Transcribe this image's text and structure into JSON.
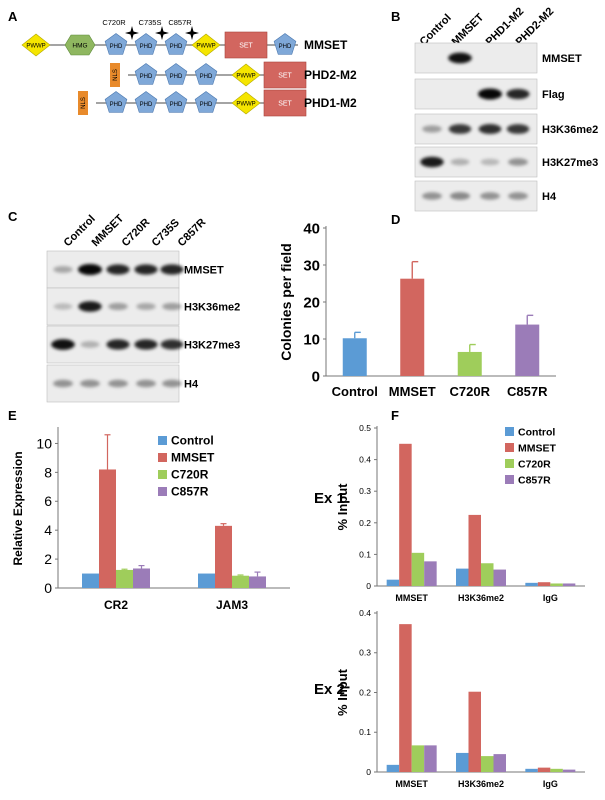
{
  "panel_labels": [
    "A",
    "B",
    "C",
    "D",
    "E",
    "F"
  ],
  "panel_a": {
    "domain_labels": {
      "pwwp": "PWWP",
      "hmg": "HMG",
      "phd": "PHD",
      "set": "SET",
      "nls": "NLS"
    },
    "mutation_labels": [
      "C720R",
      "C735S",
      "C857R"
    ],
    "constructs": [
      {
        "name": "MMSET",
        "domains": [
          "pwwp",
          "hmg",
          "phd",
          "phd",
          "phd",
          "pwwp",
          "set",
          "phd"
        ]
      },
      {
        "name": "PHD2-M2",
        "domains": [
          "nls",
          "phd",
          "phd",
          "phd",
          "pwwp",
          "set",
          "phd"
        ]
      },
      {
        "name": "PHD1-M2",
        "domains": [
          "nls",
          "phd",
          "phd",
          "phd",
          "phd",
          "pwwp",
          "set",
          "phd"
        ]
      }
    ],
    "colors": {
      "pwwp": "#f5e500",
      "hmg": "#8fb760",
      "phd": "#7fa8d8",
      "set": "#d2665f",
      "nls": "#e88a2b"
    }
  },
  "panel_b": {
    "lanes": [
      "Control",
      "MMSET",
      "PHD1-M2",
      "PHD2-M2"
    ],
    "rows": [
      "MMSET",
      "Flag",
      "H3K36me2",
      "H3K27me3",
      "H4"
    ]
  },
  "panel_c": {
    "lanes": [
      "Control",
      "MMSET",
      "C720R",
      "C735S",
      "C857R"
    ],
    "rows": [
      "MMSET",
      "H3K36me2",
      "H3K27me3",
      "H4"
    ]
  },
  "chart_data": [
    {
      "panel": "D",
      "type": "bar",
      "categories": [
        "Control",
        "MMSET",
        "C720R",
        "C857R"
      ],
      "values": [
        10.2,
        26.3,
        6.5,
        13.9
      ],
      "errors": [
        1.6,
        4.6,
        2.0,
        2.5
      ],
      "colors": [
        "#5b9bd5",
        "#d2665f",
        "#9fcd5b",
        "#9b7cb8"
      ],
      "ylabel": "Colonies per field",
      "ylim": [
        0,
        40
      ],
      "yticks": [
        "0",
        "10",
        "20",
        "30",
        "40"
      ]
    },
    {
      "panel": "E",
      "type": "bar",
      "categories": [
        "CR2",
        "JAM3"
      ],
      "series": [
        {
          "name": "Control",
          "values": [
            1.0,
            1.0
          ],
          "errors": [
            0.0,
            0.0
          ]
        },
        {
          "name": "MMSET",
          "values": [
            8.2,
            4.3
          ],
          "errors": [
            2.4,
            0.15
          ]
        },
        {
          "name": "C720R",
          "values": [
            1.25,
            0.85
          ],
          "errors": [
            0.05,
            0.05
          ]
        },
        {
          "name": "C857R",
          "values": [
            1.35,
            0.8
          ],
          "errors": [
            0.2,
            0.3
          ]
        }
      ],
      "colors": [
        "#5b9bd5",
        "#d2665f",
        "#9fcd5b",
        "#9b7cb8"
      ],
      "ylabel": "Relative Expression",
      "ylim": [
        0,
        11
      ],
      "yticks": [
        "0",
        "2",
        "4",
        "6",
        "8",
        "10"
      ],
      "legend": "top-right"
    },
    {
      "panel": "F",
      "title": "Ex 1",
      "type": "bar",
      "categories": [
        "MMSET",
        "H3K36me2",
        "IgG"
      ],
      "series": [
        {
          "name": "Control",
          "values": [
            0.02,
            0.055,
            0.01
          ]
        },
        {
          "name": "MMSET",
          "values": [
            0.45,
            0.225,
            0.012
          ]
        },
        {
          "name": "C720R",
          "values": [
            0.105,
            0.072,
            0.008
          ]
        },
        {
          "name": "C857R",
          "values": [
            0.078,
            0.052,
            0.008
          ]
        }
      ],
      "colors": [
        "#5b9bd5",
        "#d2665f",
        "#9fcd5b",
        "#9b7cb8"
      ],
      "ylabel": "% Input",
      "ylim": [
        0,
        0.5
      ],
      "yticks": [
        "0",
        "0.1",
        "0.2",
        "0.3",
        "0.4",
        "0.5"
      ],
      "legend": "top-right"
    },
    {
      "panel": "F",
      "title": "Ex 2",
      "type": "bar",
      "categories": [
        "MMSET",
        "H3K36me2",
        "IgG"
      ],
      "series": [
        {
          "name": "Control",
          "values": [
            0.018,
            0.048,
            0.008
          ]
        },
        {
          "name": "MMSET",
          "values": [
            0.372,
            0.202,
            0.011
          ]
        },
        {
          "name": "C720R",
          "values": [
            0.067,
            0.04,
            0.008
          ]
        },
        {
          "name": "C857R",
          "values": [
            0.067,
            0.045,
            0.006
          ]
        }
      ],
      "colors": [
        "#5b9bd5",
        "#d2665f",
        "#9fcd5b",
        "#9b7cb8"
      ],
      "ylabel": "% Input",
      "ylim": [
        0,
        0.4
      ],
      "yticks": [
        "0",
        "0.1",
        "0.2",
        "0.3",
        "0.4"
      ]
    }
  ]
}
